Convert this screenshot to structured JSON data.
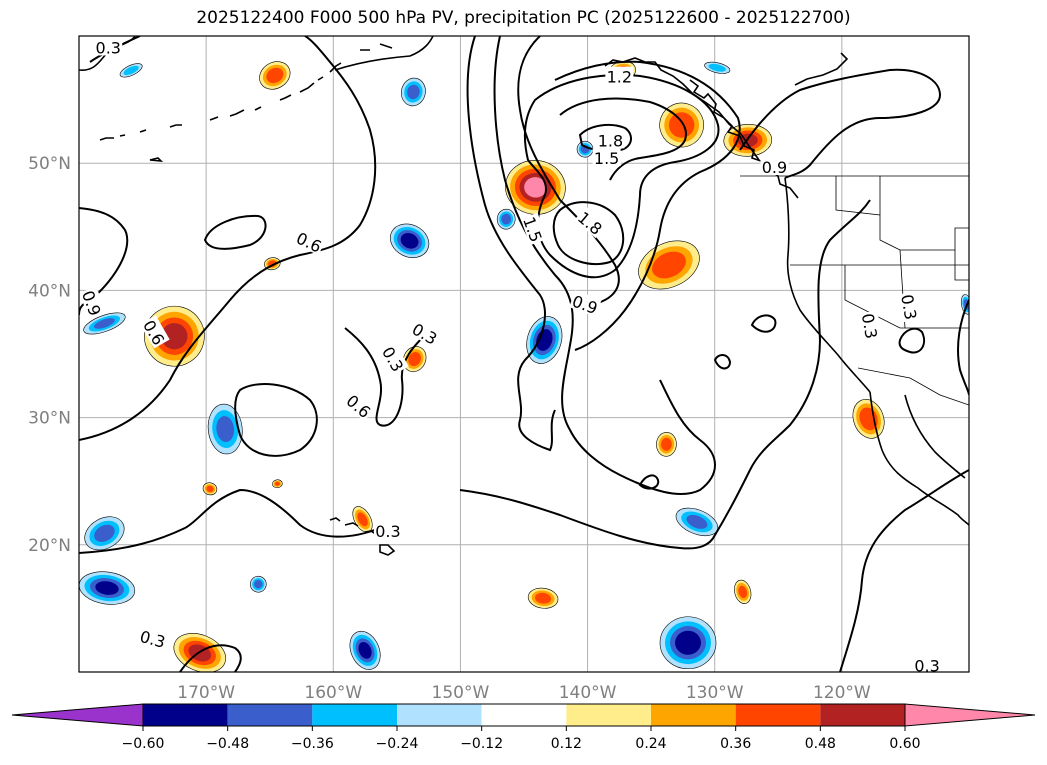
{
  "figure": {
    "title": "2025122400 F000 500 hPa PV, precipitation PC (2025122600 - 2025122700)"
  },
  "map": {
    "lon_range": [
      -180,
      -110
    ],
    "lat_range": [
      10,
      60
    ],
    "lat_ticks": [
      {
        "value": 50,
        "label": "50°N"
      },
      {
        "value": 40,
        "label": "40°N"
      },
      {
        "value": 30,
        "label": "30°N"
      },
      {
        "value": 20,
        "label": "20°N"
      }
    ],
    "lon_ticks": [
      {
        "value": -170,
        "label": "170°W"
      },
      {
        "value": -160,
        "label": "160°W"
      },
      {
        "value": -150,
        "label": "150°W"
      },
      {
        "value": -140,
        "label": "140°W"
      },
      {
        "value": -130,
        "label": "130°W"
      },
      {
        "value": -120,
        "label": "120°W"
      }
    ],
    "gridlines": true,
    "contour_labels": [
      {
        "text": "0.3",
        "lon": -177.7,
        "lat": 59.1,
        "rot": 0
      },
      {
        "text": "0.6",
        "lon": -161.9,
        "lat": 43.8,
        "rot": 25
      },
      {
        "text": "0.9",
        "lon": -179.0,
        "lat": 39.0,
        "rot": 70
      },
      {
        "text": "0.6",
        "lon": -174.1,
        "lat": 36.7,
        "rot": 60
      },
      {
        "text": "0.3",
        "lon": -152.8,
        "lat": 36.6,
        "rot": 30
      },
      {
        "text": "0.3",
        "lon": -155.3,
        "lat": 34.6,
        "rot": 60
      },
      {
        "text": "0.6",
        "lon": -158.0,
        "lat": 30.9,
        "rot": 40
      },
      {
        "text": "0.3",
        "lon": -174.2,
        "lat": 12.6,
        "rot": 15
      },
      {
        "text": "0.3",
        "lon": -155.7,
        "lat": 21.1,
        "rot": 0
      },
      {
        "text": "1.2",
        "lon": -137.5,
        "lat": 56.8,
        "rot": 0
      },
      {
        "text": "1.8",
        "lon": -138.2,
        "lat": 51.8,
        "rot": 0
      },
      {
        "text": "1.5",
        "lon": -138.5,
        "lat": 50.4,
        "rot": 0
      },
      {
        "text": "1.8",
        "lon": -139.8,
        "lat": 45.3,
        "rot": 40
      },
      {
        "text": "1.5",
        "lon": -144.3,
        "lat": 44.8,
        "rot": 70
      },
      {
        "text": "0.9",
        "lon": -140.2,
        "lat": 38.9,
        "rot": 20
      },
      {
        "text": "0.9",
        "lon": -125.3,
        "lat": 49.7,
        "rot": 0
      },
      {
        "text": "0.3",
        "lon": -117.8,
        "lat": 37.2,
        "rot": 80
      },
      {
        "text": "0.3",
        "lon": -114.7,
        "lat": 38.7,
        "rot": 80
      },
      {
        "text": "0.3",
        "lon": -113.3,
        "lat": 10.5,
        "rot": 0
      }
    ],
    "precip_blobs": [
      {
        "lon": -164.6,
        "lat": 56.9,
        "rx": 16,
        "ry": 13,
        "level": 0.42
      },
      {
        "lon": -144.1,
        "lat": 48.1,
        "rx": 30,
        "ry": 27,
        "level": 0.65
      },
      {
        "lon": -137.3,
        "lat": 57.2,
        "rx": 14,
        "ry": 10,
        "level": 0.4
      },
      {
        "lon": -132.6,
        "lat": 53.0,
        "rx": 22,
        "ry": 22,
        "level": 0.45
      },
      {
        "lon": -127.4,
        "lat": 51.8,
        "rx": 24,
        "ry": 16,
        "level": 0.5
      },
      {
        "lon": -133.6,
        "lat": 42.0,
        "rx": 32,
        "ry": 22,
        "level": 0.42
      },
      {
        "lon": -172.5,
        "lat": 36.4,
        "rx": 30,
        "ry": 30,
        "level": 0.52
      },
      {
        "lon": -164.8,
        "lat": 42.1,
        "rx": 8,
        "ry": 6,
        "level": 0.4
      },
      {
        "lon": -153.6,
        "lat": 34.6,
        "rx": 11,
        "ry": 13,
        "level": 0.42
      },
      {
        "lon": -133.8,
        "lat": 27.9,
        "rx": 10,
        "ry": 12,
        "level": 0.4
      },
      {
        "lon": -117.9,
        "lat": 29.9,
        "rx": 15,
        "ry": 20,
        "level": 0.46
      },
      {
        "lon": -169.7,
        "lat": 24.4,
        "rx": 7,
        "ry": 6,
        "level": 0.38
      },
      {
        "lon": -164.4,
        "lat": 24.8,
        "rx": 5,
        "ry": 4,
        "level": 0.36
      },
      {
        "lon": -157.7,
        "lat": 22.0,
        "rx": 8,
        "ry": 14,
        "level": 0.4
      },
      {
        "lon": -143.5,
        "lat": 15.8,
        "rx": 15,
        "ry": 10,
        "level": 0.4
      },
      {
        "lon": -127.8,
        "lat": 16.3,
        "rx": 8,
        "ry": 12,
        "level": 0.38
      },
      {
        "lon": -170.5,
        "lat": 11.5,
        "rx": 27,
        "ry": 18,
        "level": 0.52
      }
    ],
    "neg_blobs": [
      {
        "lon": -175.9,
        "lat": 57.3,
        "rx": 12,
        "ry": 5,
        "level": -0.26
      },
      {
        "lon": -153.7,
        "lat": 55.6,
        "rx": 12,
        "ry": 14,
        "level": -0.38
      },
      {
        "lon": -140.2,
        "lat": 51.1,
        "rx": 8,
        "ry": 8,
        "level": -0.4
      },
      {
        "lon": -154.0,
        "lat": 43.9,
        "rx": 20,
        "ry": 16,
        "level": -0.55
      },
      {
        "lon": -146.4,
        "lat": 45.6,
        "rx": 9,
        "ry": 10,
        "level": -0.4
      },
      {
        "lon": -178.0,
        "lat": 37.4,
        "rx": 22,
        "ry": 8,
        "level": -0.36
      },
      {
        "lon": -143.4,
        "lat": 36.1,
        "rx": 17,
        "ry": 24,
        "level": -0.55
      },
      {
        "lon": -168.5,
        "lat": 29.1,
        "rx": 17,
        "ry": 25,
        "level": -0.38
      },
      {
        "lon": -178.0,
        "lat": 20.9,
        "rx": 21,
        "ry": 15,
        "level": -0.38
      },
      {
        "lon": -177.8,
        "lat": 16.6,
        "rx": 28,
        "ry": 16,
        "level": -0.5
      },
      {
        "lon": -165.9,
        "lat": 16.9,
        "rx": 8,
        "ry": 8,
        "level": -0.38
      },
      {
        "lon": -131.4,
        "lat": 21.8,
        "rx": 22,
        "ry": 12,
        "level": -0.36
      },
      {
        "lon": -132.1,
        "lat": 12.3,
        "rx": 28,
        "ry": 26,
        "level": -0.55
      },
      {
        "lon": -157.5,
        "lat": 11.7,
        "rx": 14,
        "ry": 20,
        "level": -0.52
      },
      {
        "lon": -129.8,
        "lat": 57.5,
        "rx": 13,
        "ry": 5,
        "level": -0.26
      },
      {
        "lon": -110.2,
        "lat": 38.9,
        "rx": 5,
        "ry": 10,
        "level": -0.4
      }
    ]
  },
  "colorbar": {
    "levels": [
      -0.6,
      -0.48,
      -0.36,
      -0.24,
      -0.12,
      0.12,
      0.24,
      0.36,
      0.48,
      0.6
    ],
    "tick_labels": [
      "−0.60",
      "−0.48",
      "−0.36",
      "−0.24",
      "−0.12",
      "0.12",
      "0.24",
      "0.36",
      "0.48",
      "0.60"
    ],
    "colors": [
      "#9933cc",
      "#00008b",
      "#3a5fcd",
      "#00bfff",
      "#b0e2ff",
      "#ffffff",
      "#ffec8b",
      "#ffa500",
      "#ff4500",
      "#b22222",
      "#ff88aa"
    ]
  }
}
